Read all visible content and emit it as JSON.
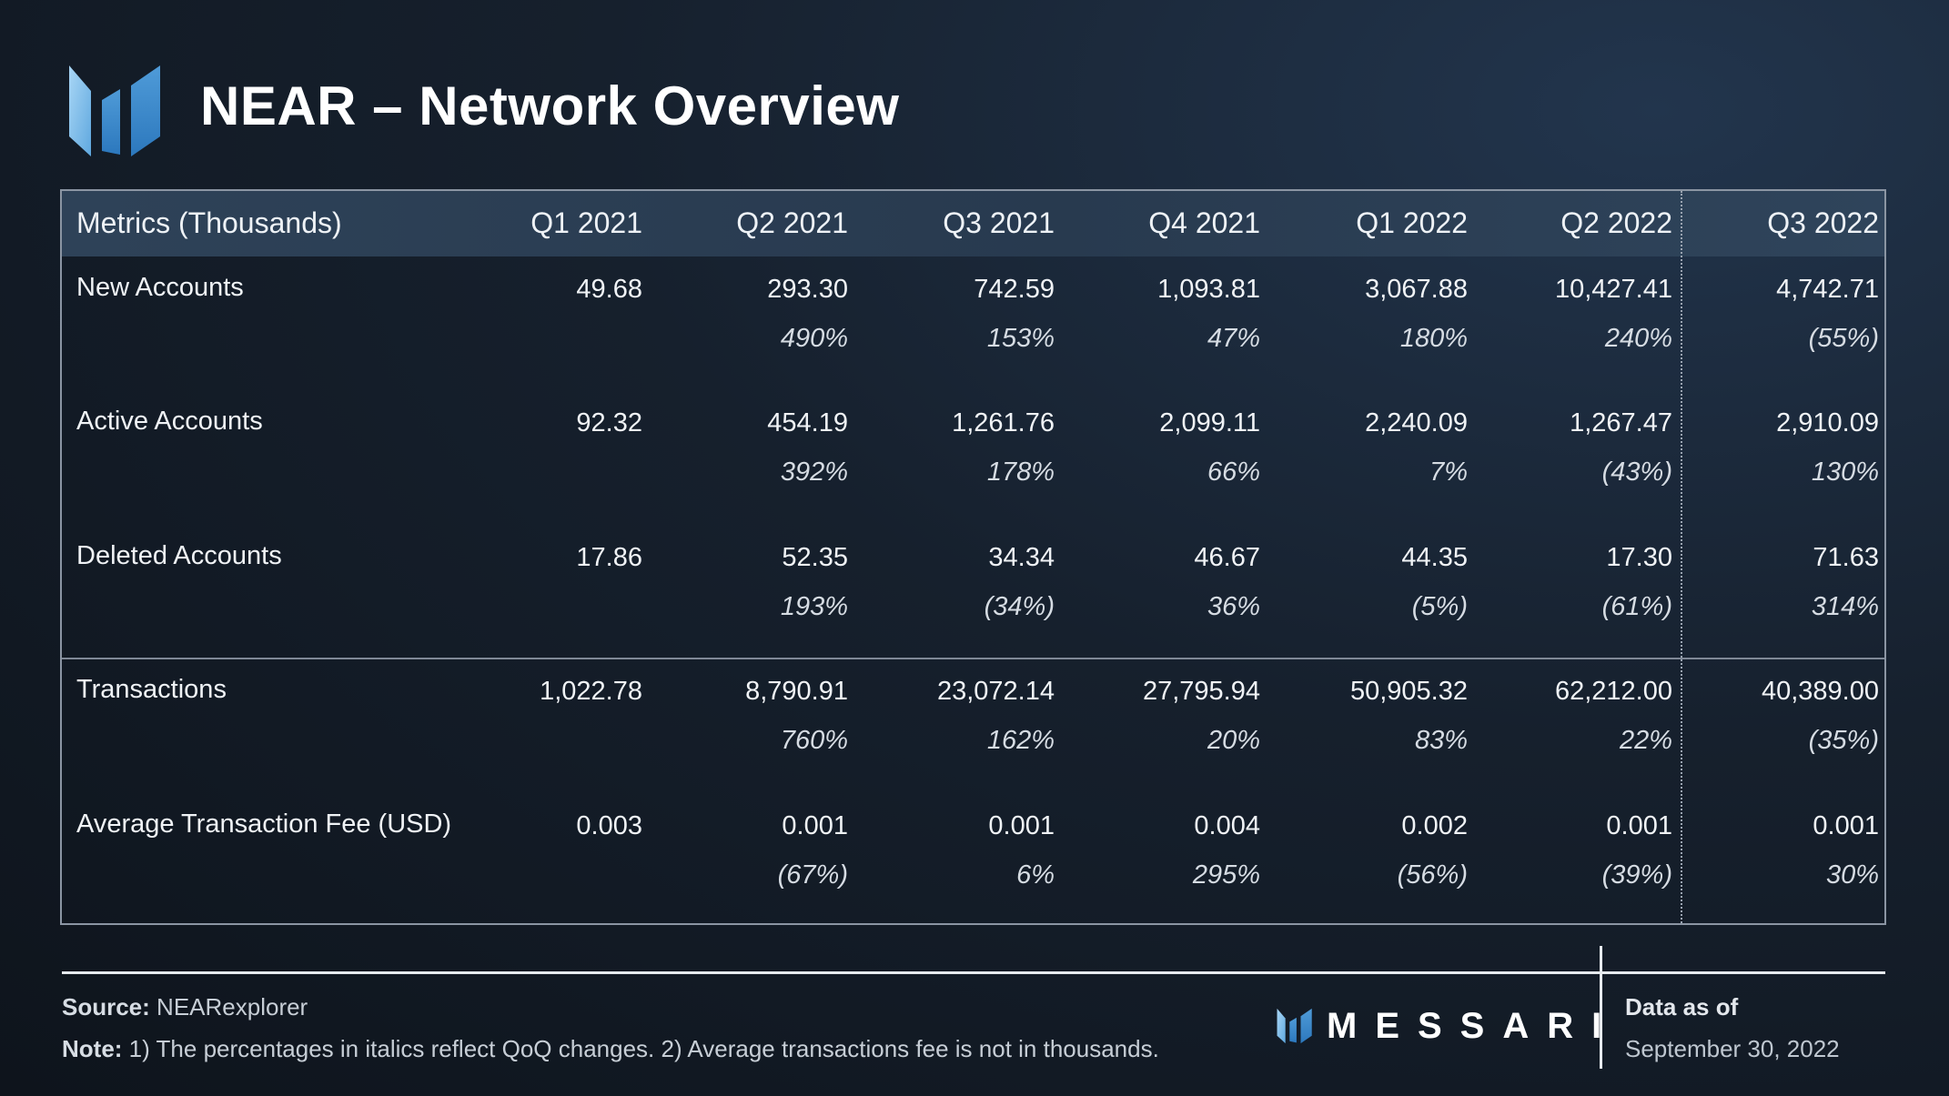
{
  "title": "NEAR – Network Overview",
  "chart_data": {
    "type": "table",
    "header_label": "Metrics (Thousands)",
    "columns": [
      "Q1 2021",
      "Q2 2021",
      "Q3 2021",
      "Q4 2021",
      "Q1 2022",
      "Q2 2022",
      "Q3 2022"
    ],
    "rows": [
      {
        "label": "New Accounts",
        "values": [
          "49.68",
          "293.30",
          "742.59",
          "1,093.81",
          "3,067.88",
          "10,427.41",
          "4,742.71"
        ],
        "changes": [
          "",
          "490%",
          "153%",
          "47%",
          "180%",
          "240%",
          "(55%)"
        ]
      },
      {
        "label": "Active Accounts",
        "values": [
          "92.32",
          "454.19",
          "1,261.76",
          "2,099.11",
          "2,240.09",
          "1,267.47",
          "2,910.09"
        ],
        "changes": [
          "",
          "392%",
          "178%",
          "66%",
          "7%",
          "(43%)",
          "130%"
        ]
      },
      {
        "label": "Deleted Accounts",
        "values": [
          "17.86",
          "52.35",
          "34.34",
          "46.67",
          "44.35",
          "17.30",
          "71.63"
        ],
        "changes": [
          "",
          "193%",
          "(34%)",
          "36%",
          "(5%)",
          "(61%)",
          "314%"
        ]
      },
      {
        "label": "Transactions",
        "values": [
          "1,022.78",
          "8,790.91",
          "23,072.14",
          "27,795.94",
          "50,905.32",
          "62,212.00",
          "40,389.00"
        ],
        "changes": [
          "",
          "760%",
          "162%",
          "20%",
          "83%",
          "22%",
          "(35%)"
        ]
      },
      {
        "label": "Average Transaction Fee (USD)",
        "values": [
          "0.003",
          "0.001",
          "0.001",
          "0.004",
          "0.002",
          "0.001",
          "0.001"
        ],
        "changes": [
          "",
          "(67%)",
          "6%",
          "295%",
          "(56%)",
          "(39%)",
          "30%"
        ]
      }
    ]
  },
  "footer": {
    "source_label": "Source:",
    "source_text": "NEARexplorer",
    "note_label": "Note:",
    "note_text": "1) The percentages in italics reflect QoQ changes. 2) Average transactions fee is not in thousands.",
    "brand": "MESSARI",
    "data_as_of_label": "Data as of",
    "data_as_of_date": "September 30, 2022"
  },
  "colors": {
    "logo_light": "#8fc6ee",
    "logo_mid": "#4c96d4",
    "logo_dark": "#2f7cc2",
    "header_bg": "#2e4258"
  }
}
